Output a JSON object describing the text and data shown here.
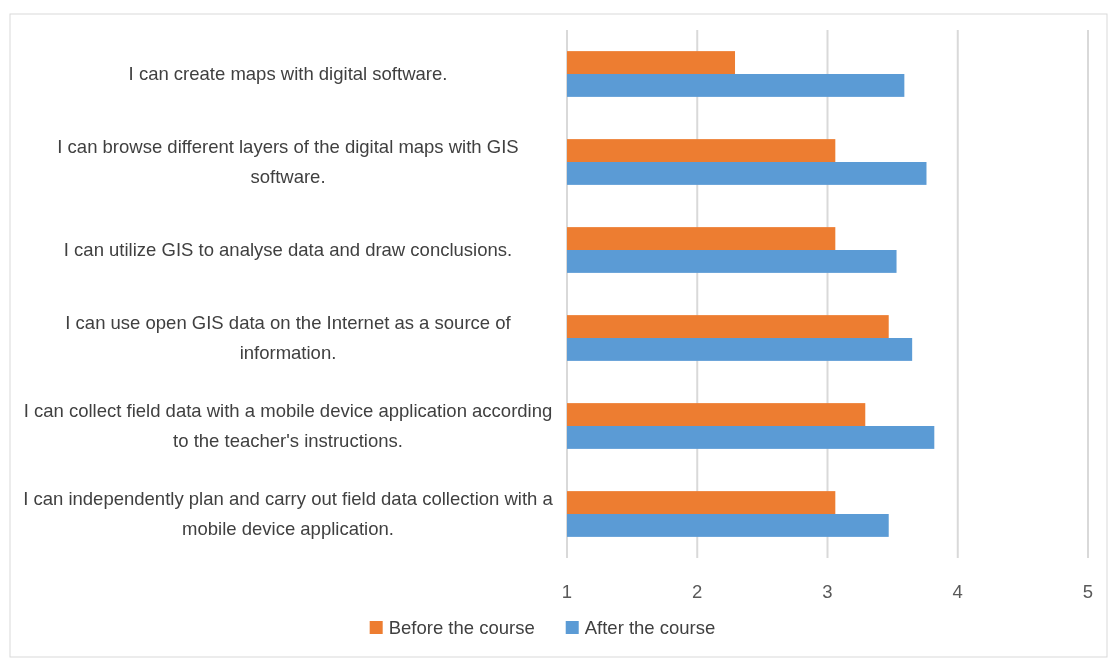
{
  "chart_data": {
    "type": "bar",
    "orientation": "horizontal",
    "categories": [
      "I can create maps with digital software.",
      "I can browse different layers of the digital maps with GIS software.",
      "I can utilize GIS to analyse data and draw conclusions.",
      "I can use open GIS data on the Internet as a source of information.",
      "I can collect field data with a mobile device application according to the teacher's instructions.",
      "I can independently plan and carry out field data collection with a mobile device application."
    ],
    "series": [
      {
        "name": "Before the course",
        "color": "#ed7d31",
        "values": [
          2.29,
          3.06,
          3.06,
          3.47,
          3.29,
          3.06
        ]
      },
      {
        "name": "After the course",
        "color": "#5b9bd5",
        "values": [
          3.59,
          3.76,
          3.53,
          3.65,
          3.82,
          3.47
        ]
      }
    ],
    "xlim": [
      1,
      5
    ],
    "xticks": [
      1,
      2,
      3,
      4,
      5
    ],
    "grid": "x",
    "legend": "bottom"
  }
}
